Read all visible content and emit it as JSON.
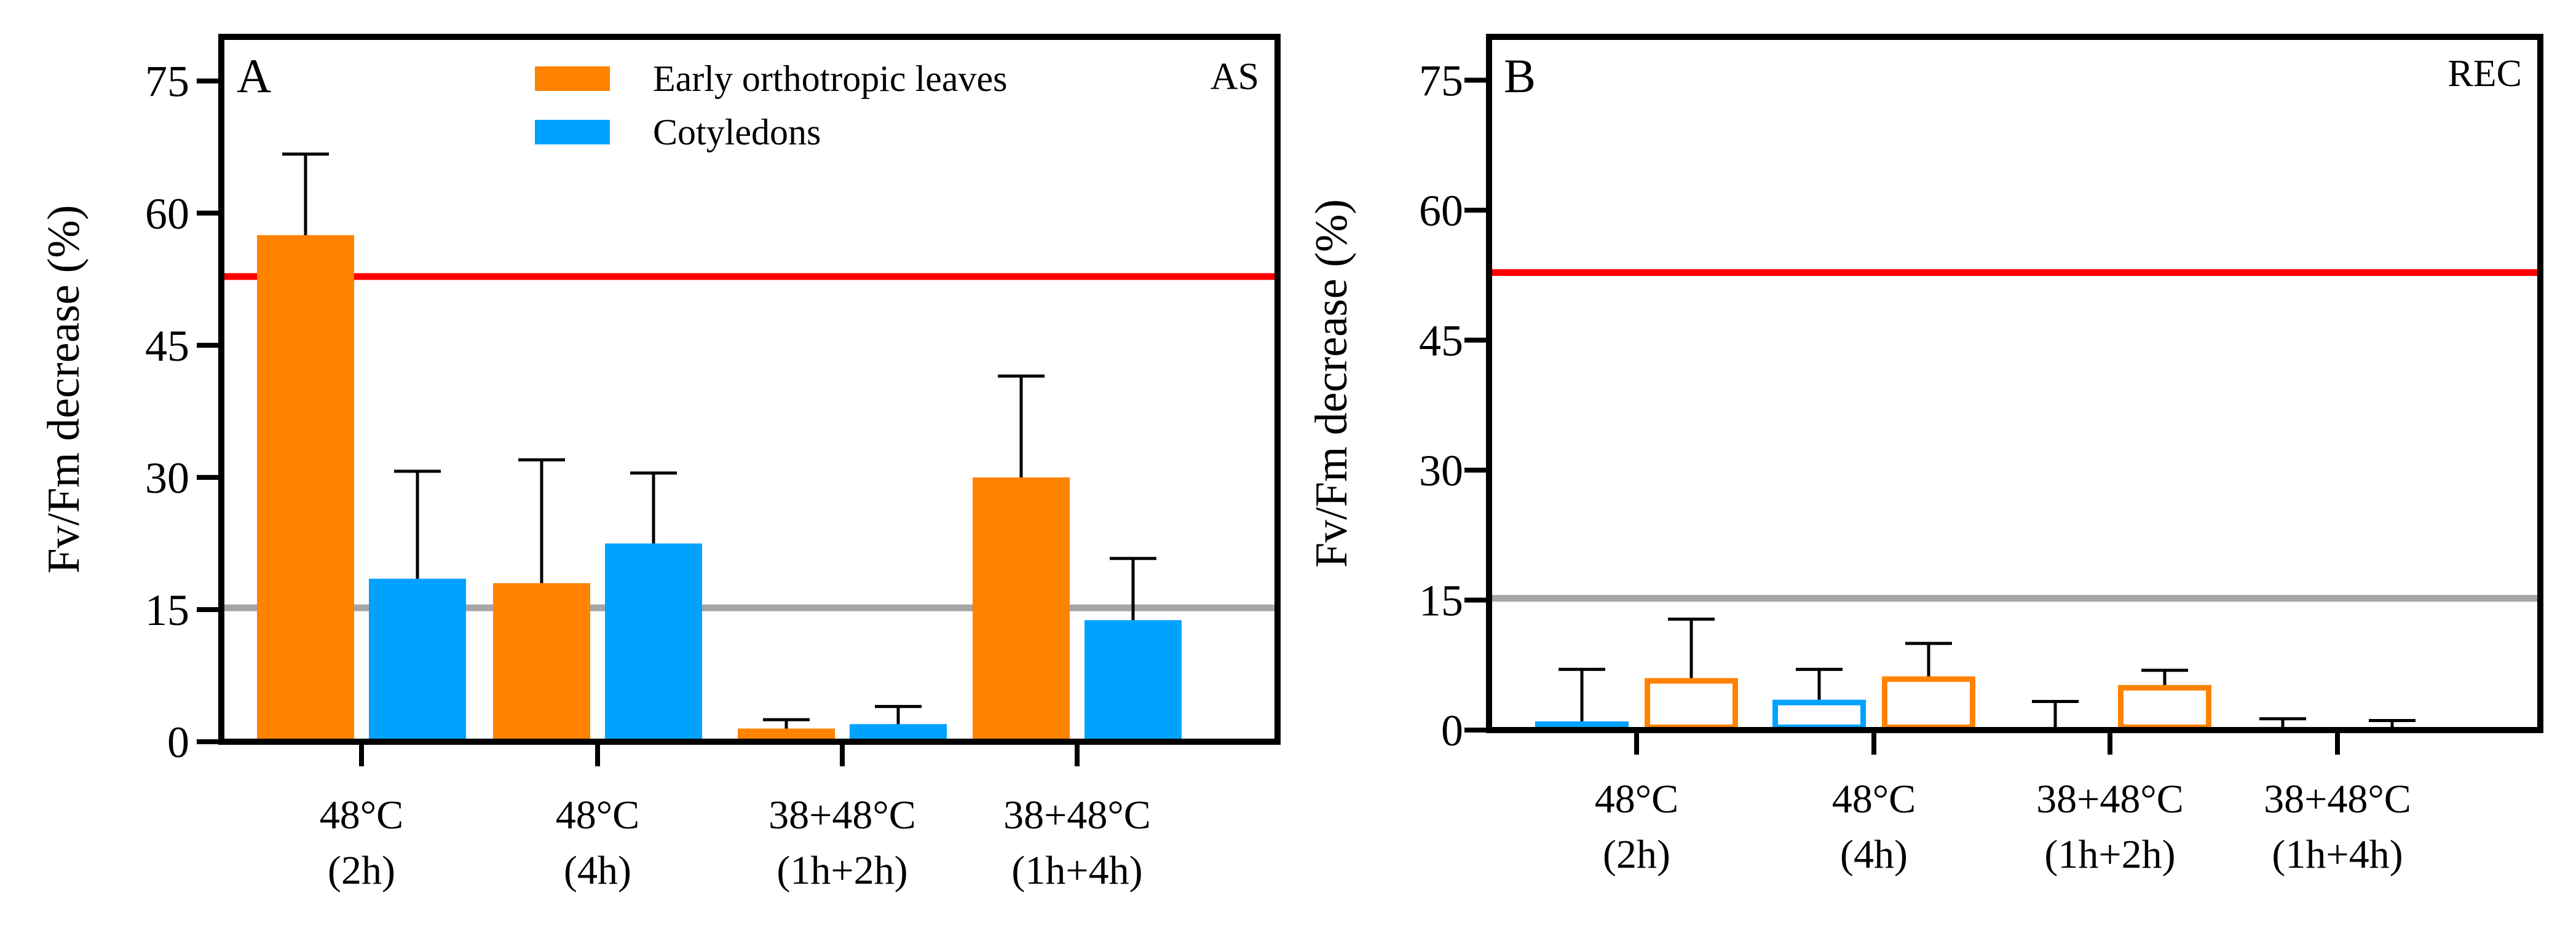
{
  "chart_data": [
    {
      "type": "bar",
      "panel_label": "A",
      "corner_label": "AS",
      "ylabel": "Fv/Fm decrease (%)",
      "ylim": [
        0,
        80
      ],
      "yticks": [
        0,
        15,
        30,
        45,
        60,
        75
      ],
      "ytick_labels": [
        "0",
        "15",
        "30",
        "45",
        "60",
        "75"
      ],
      "categories": [
        {
          "line1": "48°C",
          "line2": "(2h)"
        },
        {
          "line1": "48°C",
          "line2": "(4h)"
        },
        {
          "line1": "38+48°C",
          "line2": "(1h+2h)"
        },
        {
          "line1": "38+48°C",
          "line2": "(1h+4h)"
        }
      ],
      "series": [
        {
          "name": "Early orthotropic leaves",
          "color": "#FF8200",
          "style": "filled",
          "values": [
            57.5,
            18,
            1.5,
            30
          ],
          "errors": [
            9.2,
            14,
            1,
            11.5
          ]
        },
        {
          "name": "Cotyledons",
          "color": "#00A2FF",
          "style": "filled",
          "values": [
            18.5,
            22.5,
            2,
            13.8
          ],
          "errors": [
            12.2,
            8,
            2,
            7
          ]
        }
      ],
      "reference_lines": [
        {
          "y": 52.8,
          "color": "#FF0000"
        },
        {
          "y": 15.2,
          "color": "#A6A6A6"
        }
      ],
      "legend": {
        "position": "top-center",
        "entries": [
          "Early orthotropic leaves",
          "Cotyledons"
        ]
      }
    },
    {
      "type": "bar",
      "panel_label": "B",
      "corner_label": "REC",
      "ylabel": "Fv/Fm decrease (%)",
      "ylim": [
        0,
        80
      ],
      "yticks": [
        0,
        15,
        30,
        45,
        60,
        75
      ],
      "ytick_labels": [
        "0",
        "15",
        "30",
        "45",
        "60",
        "75"
      ],
      "categories": [
        {
          "line1": "48°C",
          "line2": "(2h)"
        },
        {
          "line1": "48°C",
          "line2": "(4h)"
        },
        {
          "line1": "38+48°C",
          "line2": "(1h+2h)"
        },
        {
          "line1": "38+48°C",
          "line2": "(1h+4h)"
        }
      ],
      "series": [
        {
          "name": "Cotyledons",
          "color": "#00A2FF",
          "style": "outline",
          "values": [
            1,
            3.5,
            0,
            0
          ],
          "errors": [
            6,
            3.5,
            3.3,
            1.3
          ]
        },
        {
          "name": "Early orthotropic leaves",
          "color": "#FF8200",
          "style": "outline",
          "values": [
            6,
            6.2,
            5.2,
            0
          ],
          "errors": [
            6.8,
            3.8,
            1.7,
            1.1
          ]
        }
      ],
      "reference_lines": [
        {
          "y": 52.8,
          "color": "#FF0000"
        },
        {
          "y": 15.2,
          "color": "#A6A6A6"
        }
      ]
    }
  ]
}
